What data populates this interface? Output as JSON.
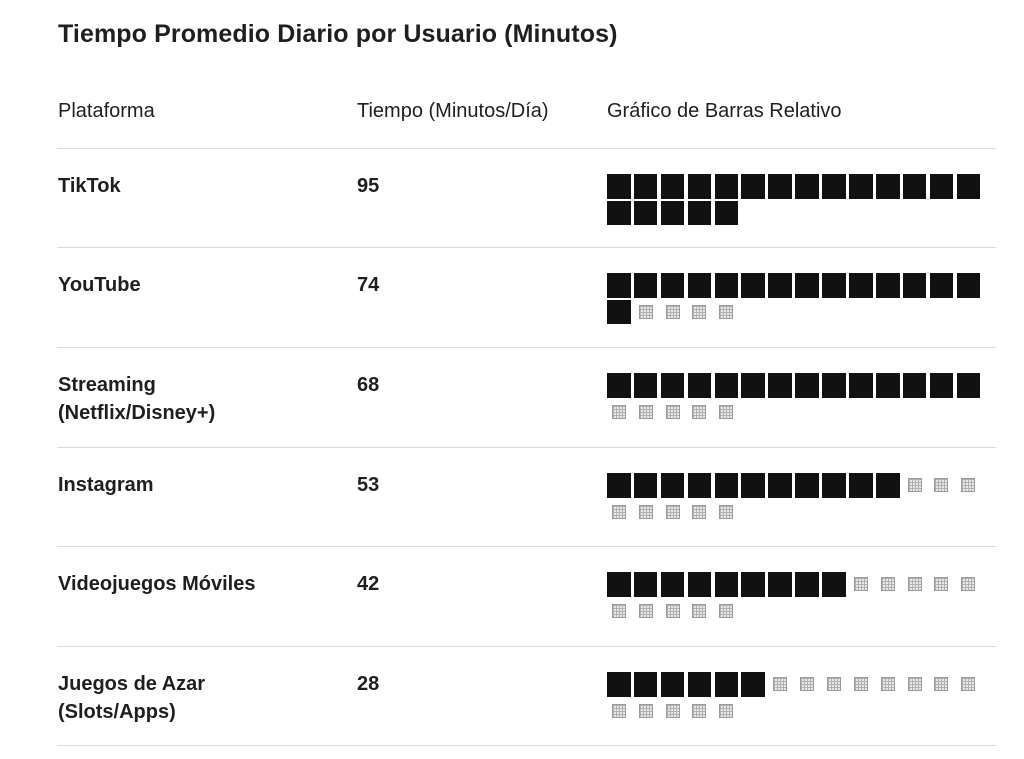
{
  "title": "Tiempo Promedio Diario por Usuario (Minutos)",
  "headers": {
    "platform": "Plataforma",
    "time": "Tiempo (Minutos/Día)",
    "chart": "Gráfico de Barras Relativo"
  },
  "rows": [
    {
      "platform_lines": [
        "TikTok"
      ],
      "minutes": "95",
      "filled": 19,
      "empty": 0
    },
    {
      "platform_lines": [
        "YouTube"
      ],
      "minutes": "74",
      "filled": 15,
      "empty": 4
    },
    {
      "platform_lines": [
        "Streaming",
        "(Netflix/Disney+)"
      ],
      "minutes": "68",
      "filled": 14,
      "empty": 5
    },
    {
      "platform_lines": [
        "Instagram"
      ],
      "minutes": "53",
      "filled": 11,
      "empty": 8
    },
    {
      "platform_lines": [
        "Videojuegos Móviles"
      ],
      "minutes": "42",
      "filled": 9,
      "empty": 10
    },
    {
      "platform_lines": [
        "Juegos de Azar",
        "(Slots/Apps)"
      ],
      "minutes": "28",
      "filled": 6,
      "empty": 13
    }
  ],
  "colors": {
    "filled": "#111111",
    "empty": "#e8e8e8",
    "divider": "#dadada"
  },
  "icons": {
    "filled": "black-large-square-icon",
    "empty": "square-with-grid-icon"
  }
}
